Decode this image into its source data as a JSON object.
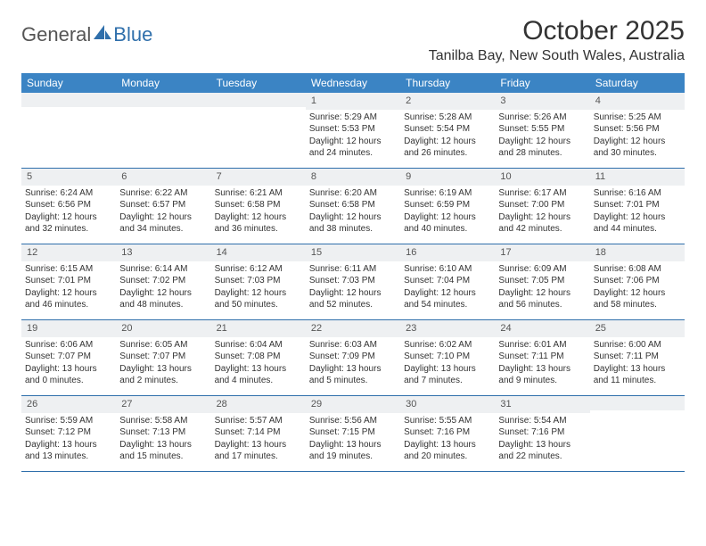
{
  "brand": {
    "part1": "General",
    "part2": "Blue"
  },
  "title": "October 2025",
  "location": "Tanilba Bay, New South Wales, Australia",
  "dow": [
    "Sunday",
    "Monday",
    "Tuesday",
    "Wednesday",
    "Thursday",
    "Friday",
    "Saturday"
  ],
  "colors": {
    "header_bg": "#3b84c4",
    "header_text": "#ffffff",
    "rule": "#2f6fab",
    "daynum_bg": "#eef0f2",
    "text": "#333333",
    "logo_blue": "#2f6fab",
    "logo_gray": "#555555"
  },
  "weeks": [
    [
      {
        "n": "",
        "sr": "",
        "ss": "",
        "dl": ""
      },
      {
        "n": "",
        "sr": "",
        "ss": "",
        "dl": ""
      },
      {
        "n": "",
        "sr": "",
        "ss": "",
        "dl": ""
      },
      {
        "n": "1",
        "sr": "Sunrise: 5:29 AM",
        "ss": "Sunset: 5:53 PM",
        "dl": "Daylight: 12 hours and 24 minutes."
      },
      {
        "n": "2",
        "sr": "Sunrise: 5:28 AM",
        "ss": "Sunset: 5:54 PM",
        "dl": "Daylight: 12 hours and 26 minutes."
      },
      {
        "n": "3",
        "sr": "Sunrise: 5:26 AM",
        "ss": "Sunset: 5:55 PM",
        "dl": "Daylight: 12 hours and 28 minutes."
      },
      {
        "n": "4",
        "sr": "Sunrise: 5:25 AM",
        "ss": "Sunset: 5:56 PM",
        "dl": "Daylight: 12 hours and 30 minutes."
      }
    ],
    [
      {
        "n": "5",
        "sr": "Sunrise: 6:24 AM",
        "ss": "Sunset: 6:56 PM",
        "dl": "Daylight: 12 hours and 32 minutes."
      },
      {
        "n": "6",
        "sr": "Sunrise: 6:22 AM",
        "ss": "Sunset: 6:57 PM",
        "dl": "Daylight: 12 hours and 34 minutes."
      },
      {
        "n": "7",
        "sr": "Sunrise: 6:21 AM",
        "ss": "Sunset: 6:58 PM",
        "dl": "Daylight: 12 hours and 36 minutes."
      },
      {
        "n": "8",
        "sr": "Sunrise: 6:20 AM",
        "ss": "Sunset: 6:58 PM",
        "dl": "Daylight: 12 hours and 38 minutes."
      },
      {
        "n": "9",
        "sr": "Sunrise: 6:19 AM",
        "ss": "Sunset: 6:59 PM",
        "dl": "Daylight: 12 hours and 40 minutes."
      },
      {
        "n": "10",
        "sr": "Sunrise: 6:17 AM",
        "ss": "Sunset: 7:00 PM",
        "dl": "Daylight: 12 hours and 42 minutes."
      },
      {
        "n": "11",
        "sr": "Sunrise: 6:16 AM",
        "ss": "Sunset: 7:01 PM",
        "dl": "Daylight: 12 hours and 44 minutes."
      }
    ],
    [
      {
        "n": "12",
        "sr": "Sunrise: 6:15 AM",
        "ss": "Sunset: 7:01 PM",
        "dl": "Daylight: 12 hours and 46 minutes."
      },
      {
        "n": "13",
        "sr": "Sunrise: 6:14 AM",
        "ss": "Sunset: 7:02 PM",
        "dl": "Daylight: 12 hours and 48 minutes."
      },
      {
        "n": "14",
        "sr": "Sunrise: 6:12 AM",
        "ss": "Sunset: 7:03 PM",
        "dl": "Daylight: 12 hours and 50 minutes."
      },
      {
        "n": "15",
        "sr": "Sunrise: 6:11 AM",
        "ss": "Sunset: 7:03 PM",
        "dl": "Daylight: 12 hours and 52 minutes."
      },
      {
        "n": "16",
        "sr": "Sunrise: 6:10 AM",
        "ss": "Sunset: 7:04 PM",
        "dl": "Daylight: 12 hours and 54 minutes."
      },
      {
        "n": "17",
        "sr": "Sunrise: 6:09 AM",
        "ss": "Sunset: 7:05 PM",
        "dl": "Daylight: 12 hours and 56 minutes."
      },
      {
        "n": "18",
        "sr": "Sunrise: 6:08 AM",
        "ss": "Sunset: 7:06 PM",
        "dl": "Daylight: 12 hours and 58 minutes."
      }
    ],
    [
      {
        "n": "19",
        "sr": "Sunrise: 6:06 AM",
        "ss": "Sunset: 7:07 PM",
        "dl": "Daylight: 13 hours and 0 minutes."
      },
      {
        "n": "20",
        "sr": "Sunrise: 6:05 AM",
        "ss": "Sunset: 7:07 PM",
        "dl": "Daylight: 13 hours and 2 minutes."
      },
      {
        "n": "21",
        "sr": "Sunrise: 6:04 AM",
        "ss": "Sunset: 7:08 PM",
        "dl": "Daylight: 13 hours and 4 minutes."
      },
      {
        "n": "22",
        "sr": "Sunrise: 6:03 AM",
        "ss": "Sunset: 7:09 PM",
        "dl": "Daylight: 13 hours and 5 minutes."
      },
      {
        "n": "23",
        "sr": "Sunrise: 6:02 AM",
        "ss": "Sunset: 7:10 PM",
        "dl": "Daylight: 13 hours and 7 minutes."
      },
      {
        "n": "24",
        "sr": "Sunrise: 6:01 AM",
        "ss": "Sunset: 7:11 PM",
        "dl": "Daylight: 13 hours and 9 minutes."
      },
      {
        "n": "25",
        "sr": "Sunrise: 6:00 AM",
        "ss": "Sunset: 7:11 PM",
        "dl": "Daylight: 13 hours and 11 minutes."
      }
    ],
    [
      {
        "n": "26",
        "sr": "Sunrise: 5:59 AM",
        "ss": "Sunset: 7:12 PM",
        "dl": "Daylight: 13 hours and 13 minutes."
      },
      {
        "n": "27",
        "sr": "Sunrise: 5:58 AM",
        "ss": "Sunset: 7:13 PM",
        "dl": "Daylight: 13 hours and 15 minutes."
      },
      {
        "n": "28",
        "sr": "Sunrise: 5:57 AM",
        "ss": "Sunset: 7:14 PM",
        "dl": "Daylight: 13 hours and 17 minutes."
      },
      {
        "n": "29",
        "sr": "Sunrise: 5:56 AM",
        "ss": "Sunset: 7:15 PM",
        "dl": "Daylight: 13 hours and 19 minutes."
      },
      {
        "n": "30",
        "sr": "Sunrise: 5:55 AM",
        "ss": "Sunset: 7:16 PM",
        "dl": "Daylight: 13 hours and 20 minutes."
      },
      {
        "n": "31",
        "sr": "Sunrise: 5:54 AM",
        "ss": "Sunset: 7:16 PM",
        "dl": "Daylight: 13 hours and 22 minutes."
      },
      {
        "n": "",
        "sr": "",
        "ss": "",
        "dl": ""
      }
    ]
  ]
}
